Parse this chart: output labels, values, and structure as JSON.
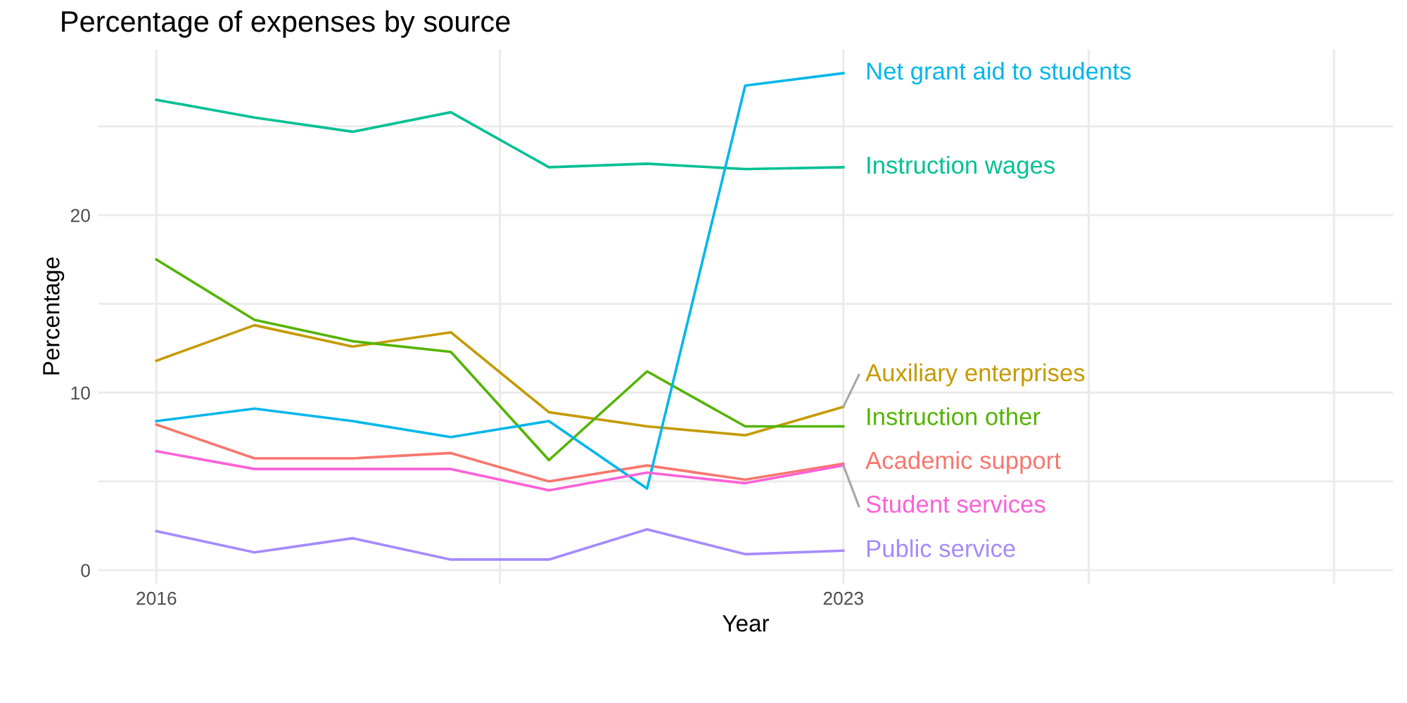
{
  "chart_data": {
    "type": "line",
    "title": "Percentage of expenses by source",
    "xlabel": "Year",
    "ylabel": "Percentage",
    "x": [
      2016,
      2017,
      2018,
      2019,
      2020,
      2021,
      2022,
      2023
    ],
    "series": [
      {
        "name": "Academic support",
        "color": "#F8766D",
        "values": [
          8.2,
          6.3,
          6.3,
          6.6,
          5.0,
          5.9,
          5.1,
          6.0
        ]
      },
      {
        "name": "Auxiliary enterprises",
        "color": "#C49A00",
        "values": [
          11.8,
          13.8,
          12.6,
          13.4,
          8.9,
          8.1,
          7.6,
          9.2
        ]
      },
      {
        "name": "Instruction other",
        "color": "#53B400",
        "values": [
          17.5,
          14.1,
          12.9,
          12.3,
          6.2,
          11.2,
          8.1,
          8.1
        ]
      },
      {
        "name": "Instruction wages",
        "color": "#00C094",
        "values": [
          26.5,
          25.5,
          24.7,
          25.8,
          22.7,
          22.9,
          22.6,
          22.7
        ]
      },
      {
        "name": "Net grant aid to students",
        "color": "#00B6EB",
        "values": [
          8.4,
          9.1,
          8.4,
          7.5,
          8.4,
          4.6,
          27.3,
          28.0
        ]
      },
      {
        "name": "Public service",
        "color": "#A58AFF",
        "values": [
          2.2,
          1.0,
          1.8,
          0.6,
          0.6,
          2.3,
          0.9,
          1.1
        ]
      },
      {
        "name": "Student services",
        "color": "#FB61D7",
        "values": [
          6.7,
          5.7,
          5.7,
          5.7,
          4.5,
          5.5,
          4.9,
          5.9
        ]
      }
    ],
    "xlim": [
      2015.41,
      2028.6
    ],
    "ylim": [
      -0.75,
      29.35
    ],
    "xticks": [
      2016,
      {
        "value": 2019.5,
        "label": null
      },
      2023,
      {
        "value": 2025.5,
        "label": null
      },
      {
        "value": 2028,
        "label": null
      }
    ],
    "yticks": [
      0,
      {
        "value": 5,
        "label": null
      },
      10,
      {
        "value": 15,
        "label": null
      },
      20,
      {
        "value": 25,
        "label": null
      }
    ],
    "grid": true,
    "legend": "right",
    "marker": "none",
    "line_style": "solid"
  }
}
